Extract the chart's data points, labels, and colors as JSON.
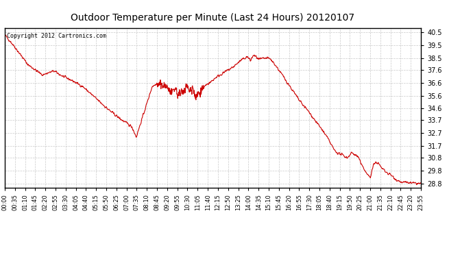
{
  "title": "Outdoor Temperature per Minute (Last 24 Hours) 20120107",
  "copyright_text": "Copyright 2012 Cartronics.com",
  "line_color": "#cc0000",
  "bg_color": "#ffffff",
  "plot_bg_color": "#ffffff",
  "grid_color": "#bbbbbb",
  "yticks": [
    28.8,
    29.8,
    30.8,
    31.7,
    32.7,
    33.7,
    34.6,
    35.6,
    36.6,
    37.6,
    38.5,
    39.5,
    40.5
  ],
  "ylim": [
    28.5,
    40.8
  ],
  "xtick_labels": [
    "00:00",
    "00:35",
    "01:10",
    "01:45",
    "02:20",
    "02:55",
    "03:30",
    "04:05",
    "04:40",
    "05:15",
    "05:50",
    "06:25",
    "07:00",
    "07:35",
    "08:10",
    "08:45",
    "09:20",
    "09:55",
    "10:30",
    "11:05",
    "11:40",
    "12:15",
    "12:50",
    "13:25",
    "14:00",
    "14:35",
    "15:10",
    "15:45",
    "16:20",
    "16:55",
    "17:30",
    "18:05",
    "18:40",
    "19:15",
    "19:50",
    "20:25",
    "21:00",
    "21:35",
    "22:10",
    "22:45",
    "23:20",
    "23:55"
  ],
  "waypoints": [
    [
      0,
      40.3
    ],
    [
      30,
      39.5
    ],
    [
      80,
      38.0
    ],
    [
      130,
      37.2
    ],
    [
      170,
      37.5
    ],
    [
      200,
      37.1
    ],
    [
      230,
      36.8
    ],
    [
      270,
      36.3
    ],
    [
      310,
      35.5
    ],
    [
      360,
      34.5
    ],
    [
      400,
      33.8
    ],
    [
      440,
      33.2
    ],
    [
      455,
      32.4
    ],
    [
      510,
      36.3
    ],
    [
      525,
      36.5
    ],
    [
      560,
      36.3
    ],
    [
      570,
      36.0
    ],
    [
      580,
      35.7
    ],
    [
      590,
      36.2
    ],
    [
      600,
      35.6
    ],
    [
      610,
      35.8
    ],
    [
      620,
      36.0
    ],
    [
      630,
      36.4
    ],
    [
      640,
      36.0
    ],
    [
      650,
      36.2
    ],
    [
      660,
      35.5
    ],
    [
      670,
      35.8
    ],
    [
      680,
      36.0
    ],
    [
      690,
      36.3
    ],
    [
      700,
      36.5
    ],
    [
      710,
      36.6
    ],
    [
      730,
      37.0
    ],
    [
      760,
      37.4
    ],
    [
      790,
      37.8
    ],
    [
      810,
      38.2
    ],
    [
      830,
      38.5
    ],
    [
      840,
      38.6
    ],
    [
      850,
      38.3
    ],
    [
      855,
      38.5
    ],
    [
      860,
      38.7
    ],
    [
      870,
      38.6
    ],
    [
      878,
      38.4
    ],
    [
      910,
      38.5
    ],
    [
      920,
      38.4
    ],
    [
      935,
      38.0
    ],
    [
      960,
      37.2
    ],
    [
      990,
      36.2
    ],
    [
      1020,
      35.2
    ],
    [
      1050,
      34.4
    ],
    [
      1080,
      33.5
    ],
    [
      1100,
      32.9
    ],
    [
      1115,
      32.4
    ],
    [
      1130,
      31.8
    ],
    [
      1140,
      31.4
    ],
    [
      1150,
      31.2
    ],
    [
      1170,
      31.0
    ],
    [
      1185,
      30.8
    ],
    [
      1200,
      31.2
    ],
    [
      1215,
      31.0
    ],
    [
      1225,
      30.8
    ],
    [
      1235,
      30.2
    ],
    [
      1245,
      29.9
    ],
    [
      1255,
      29.5
    ],
    [
      1265,
      29.3
    ],
    [
      1275,
      30.2
    ],
    [
      1285,
      30.5
    ],
    [
      1295,
      30.3
    ],
    [
      1305,
      30.0
    ],
    [
      1315,
      29.8
    ],
    [
      1325,
      29.6
    ],
    [
      1335,
      29.5
    ],
    [
      1345,
      29.3
    ],
    [
      1355,
      29.1
    ],
    [
      1365,
      29.0
    ],
    [
      1375,
      28.9
    ],
    [
      1390,
      28.9
    ],
    [
      1410,
      28.85
    ],
    [
      1430,
      28.82
    ],
    [
      1439,
      28.8
    ]
  ]
}
